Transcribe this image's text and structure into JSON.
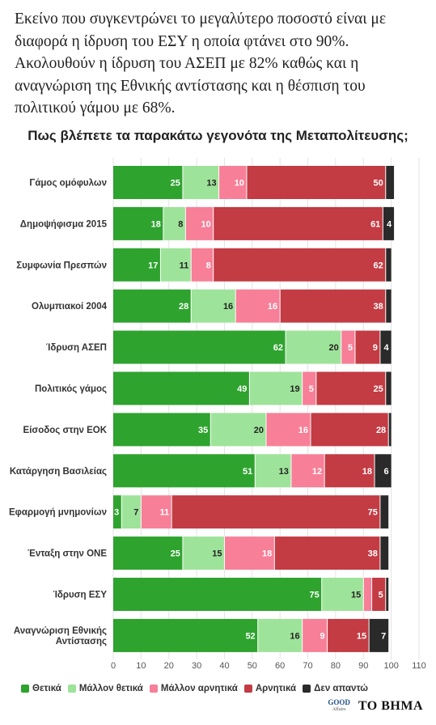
{
  "intro_text": "Εκείνο που συγκεντρώνει το μεγαλύτερο ποσοστό είναι με διαφορά η ίδρυση του ΕΣΥ η οποία φτάνει στο 90%. Ακολουθούν η ίδρυση του ΑΣΕΠ με 82% καθώς και η αναγνώριση της Εθνικής αντίστασης και η θέσπιση του πολιτικού γάμου με 68%.",
  "chart_data": {
    "type": "bar",
    "orientation": "horizontal",
    "stacked": true,
    "title": "Πως βλέπετε τα παρακάτω γεγονότα της Μεταπολίτευσης;",
    "xlabel": "",
    "ylabel": "",
    "xlim": [
      0,
      110
    ],
    "xticks": [
      0,
      10,
      20,
      30,
      40,
      50,
      60,
      70,
      80,
      90,
      100,
      110
    ],
    "grid": true,
    "legend_position": "bottom",
    "categories": [
      [
        "Γάμος ομόφυλων"
      ],
      [
        "Δημοψήφισμα 2015"
      ],
      [
        "Συμφωνία Πρεσπών"
      ],
      [
        "Ολυμπιακοί 2004"
      ],
      [
        "Ίδρυση ΑΣΕΠ"
      ],
      [
        "Πολιτικός γάμος"
      ],
      [
        "Είσοδος στην ΕΟΚ"
      ],
      [
        "Κατάργηση Βασιλείας"
      ],
      [
        "Εφαρμογή μνημονίων"
      ],
      [
        "Ένταξη στην ΟΝΕ"
      ],
      [
        "Ίδρυση ΕΣΥ"
      ],
      [
        "Αναγνώριση Εθνικής",
        "Αντίστασης"
      ]
    ],
    "series": [
      {
        "name": "Θετικά",
        "color": "#2ea32e",
        "values": [
          25,
          18,
          17,
          28,
          62,
          49,
          35,
          51,
          3,
          25,
          75,
          52
        ]
      },
      {
        "name": "Μάλλον θετικά",
        "color": "#9ee39a",
        "values": [
          13,
          8,
          11,
          16,
          20,
          19,
          20,
          13,
          7,
          15,
          15,
          16
        ]
      },
      {
        "name": "Μάλλον αρνητικά",
        "color": "#f77f98",
        "values": [
          10,
          10,
          8,
          16,
          5,
          5,
          16,
          12,
          11,
          18,
          3,
          9
        ]
      },
      {
        "name": "Αρνητικά",
        "color": "#c33b43",
        "values": [
          50,
          61,
          62,
          38,
          9,
          25,
          28,
          18,
          75,
          38,
          5,
          15
        ]
      },
      {
        "name": "Δεν απαντώ",
        "color": "#2a2a2a",
        "values": [
          3,
          4,
          2,
          2,
          4,
          2,
          1,
          6,
          3,
          3,
          1,
          7
        ]
      }
    ],
    "data_labels": [
      [
        "25",
        "13",
        "10",
        "50",
        ""
      ],
      [
        "18",
        "8",
        "10",
        "61",
        "4"
      ],
      [
        "17",
        "11",
        "8",
        "62",
        ""
      ],
      [
        "28",
        "16",
        "16",
        "38",
        ""
      ],
      [
        "62",
        "20",
        "5",
        "9",
        "4"
      ],
      [
        "49",
        "19",
        "5",
        "25",
        ""
      ],
      [
        "35",
        "20",
        "16",
        "28",
        ""
      ],
      [
        "51",
        "13",
        "12",
        "18",
        "6"
      ],
      [
        "3",
        "7",
        "11",
        "75",
        ""
      ],
      [
        "25",
        "15",
        "18",
        "38",
        ""
      ],
      [
        "75",
        "15",
        "",
        "5",
        ""
      ],
      [
        "52",
        "16",
        "9",
        "15",
        "7"
      ]
    ]
  },
  "logos": {
    "good_affairs_top": "GOOD",
    "good_affairs_bottom": "Affairs",
    "newspaper": "ΤΟ ΒΗΜΑ"
  }
}
